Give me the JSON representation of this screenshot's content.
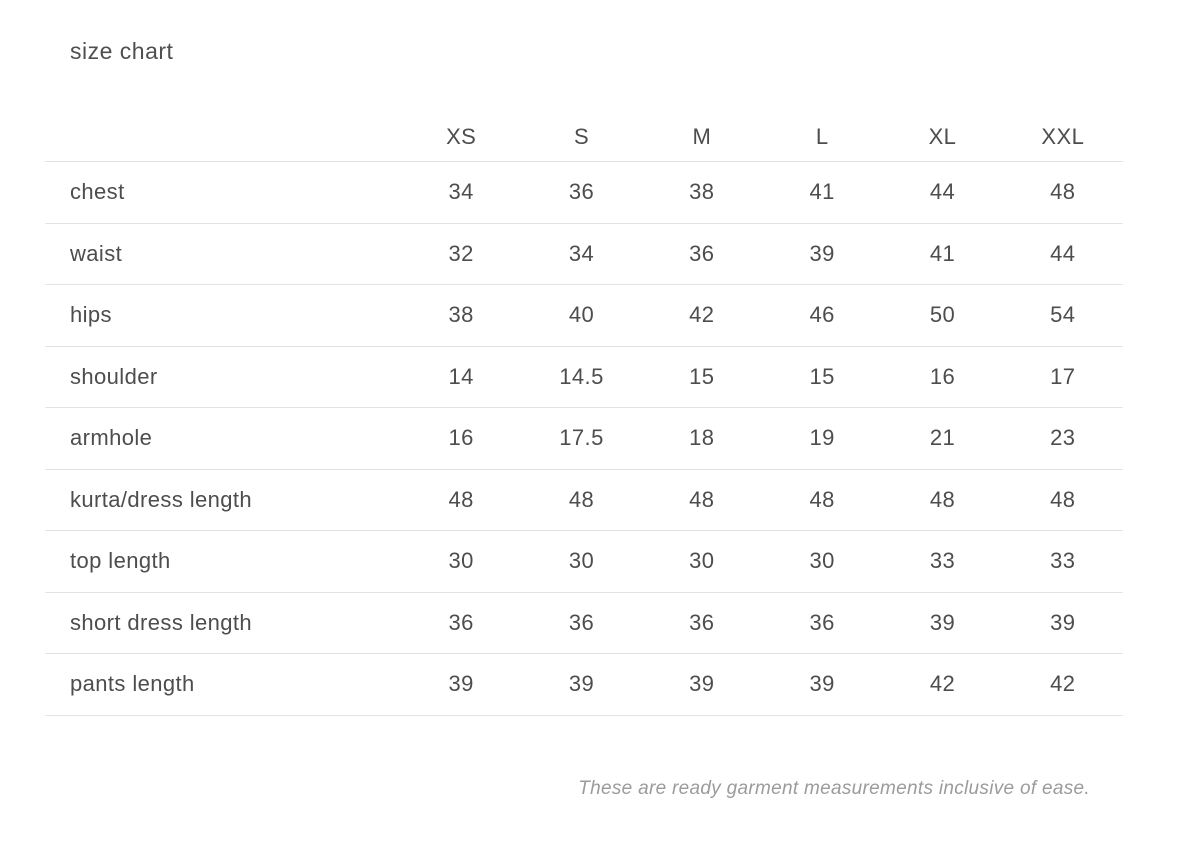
{
  "page": {
    "title": "size chart",
    "footnote": "These are ready garment measurements inclusive of ease."
  },
  "chart_data": {
    "type": "table",
    "title": "size chart",
    "columns": [
      "XS",
      "S",
      "M",
      "L",
      "XL",
      "XXL"
    ],
    "rows": [
      {
        "label": "chest",
        "values": [
          34,
          36,
          38,
          41,
          44,
          48
        ]
      },
      {
        "label": "waist",
        "values": [
          32,
          34,
          36,
          39,
          41,
          44
        ]
      },
      {
        "label": "hips",
        "values": [
          38,
          40,
          42,
          46,
          50,
          54
        ]
      },
      {
        "label": "shoulder",
        "values": [
          14,
          14.5,
          15,
          15,
          16,
          17
        ]
      },
      {
        "label": "armhole",
        "values": [
          16,
          17.5,
          18,
          19,
          21,
          23
        ]
      },
      {
        "label": "kurta/dress length",
        "values": [
          48,
          48,
          48,
          48,
          48,
          48
        ]
      },
      {
        "label": "top length",
        "values": [
          30,
          30,
          30,
          30,
          33,
          33
        ]
      },
      {
        "label": "short dress length",
        "values": [
          36,
          36,
          36,
          36,
          39,
          39
        ]
      },
      {
        "label": "pants length",
        "values": [
          39,
          39,
          39,
          39,
          42,
          42
        ]
      }
    ],
    "note": "These are ready garment measurements inclusive of ease.",
    "layout": {
      "grid": "horizontal-row-dividers",
      "header_position": "top",
      "note_position": "bottom-right"
    }
  },
  "colors": {
    "background": "#ffffff",
    "text": "#4d4d4d",
    "divider": "#e2e2e2",
    "note_text": "#9b9b9b"
  }
}
